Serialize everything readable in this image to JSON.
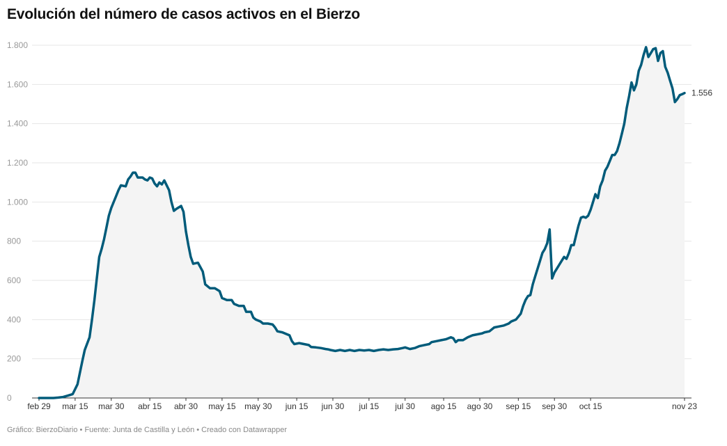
{
  "title": "Evolución del número de casos activos en el Bierzo",
  "footer": "Gráfico: BierzoDiario • Fuente: Junta de Castilla y León • Creado con Datawrapper",
  "colors": {
    "line": "#005b7a",
    "area": "#f4f4f4",
    "grid": "#e6e6e6",
    "axis": "#333333",
    "tick_text": "#999999"
  },
  "chart_data": {
    "type": "area",
    "title": "Evolución del número de casos activos en el Bierzo",
    "xlabel": "",
    "ylabel": "",
    "x_start": "2020-02-29",
    "ylim": [
      0,
      1800
    ],
    "yticks": [
      0,
      200,
      400,
      600,
      800,
      1000,
      1200,
      1400,
      1600,
      1800
    ],
    "ytick_labels": [
      "0",
      "200",
      "400",
      "600",
      "800",
      "1.000",
      "1.200",
      "1.400",
      "1.600",
      "1.800"
    ],
    "xticks": [
      {
        "date": "2020-02-29",
        "label": "feb 29"
      },
      {
        "date": "2020-03-15",
        "label": "mar 15"
      },
      {
        "date": "2020-03-30",
        "label": "mar 30"
      },
      {
        "date": "2020-04-15",
        "label": "abr 15"
      },
      {
        "date": "2020-04-30",
        "label": "abr 30"
      },
      {
        "date": "2020-05-15",
        "label": "may 15"
      },
      {
        "date": "2020-05-30",
        "label": "may 30"
      },
      {
        "date": "2020-06-15",
        "label": "jun 15"
      },
      {
        "date": "2020-06-30",
        "label": "jun 30"
      },
      {
        "date": "2020-07-15",
        "label": "jul 15"
      },
      {
        "date": "2020-07-30",
        "label": "jul 30"
      },
      {
        "date": "2020-08-15",
        "label": "ago 15"
      },
      {
        "date": "2020-08-30",
        "label": "ago 30"
      },
      {
        "date": "2020-09-15",
        "label": "sep 15"
      },
      {
        "date": "2020-09-30",
        "label": "sep 30"
      },
      {
        "date": "2020-10-15",
        "label": "oct 15"
      },
      {
        "date": "2020-11-23",
        "label": "nov 23"
      }
    ],
    "end_label": "1.556",
    "grid": true,
    "series": [
      {
        "points": [
          [
            "2020-02-29",
            0
          ],
          [
            "2020-03-06",
            0
          ],
          [
            "2020-03-08",
            2
          ],
          [
            "2020-03-10",
            5
          ],
          [
            "2020-03-12",
            12
          ],
          [
            "2020-03-14",
            20
          ],
          [
            "2020-03-16",
            70
          ],
          [
            "2020-03-17",
            130
          ],
          [
            "2020-03-18",
            190
          ],
          [
            "2020-03-19",
            245
          ],
          [
            "2020-03-21",
            310
          ],
          [
            "2020-03-22",
            400
          ],
          [
            "2020-03-23",
            500
          ],
          [
            "2020-03-24",
            610
          ],
          [
            "2020-03-25",
            720
          ],
          [
            "2020-03-26",
            760
          ],
          [
            "2020-03-27",
            810
          ],
          [
            "2020-03-28",
            870
          ],
          [
            "2020-03-29",
            930
          ],
          [
            "2020-03-30",
            970
          ],
          [
            "2020-04-01",
            1030
          ],
          [
            "2020-04-02",
            1060
          ],
          [
            "2020-04-03",
            1085
          ],
          [
            "2020-04-05",
            1080
          ],
          [
            "2020-04-06",
            1115
          ],
          [
            "2020-04-07",
            1130
          ],
          [
            "2020-04-08",
            1150
          ],
          [
            "2020-04-09",
            1150
          ],
          [
            "2020-04-10",
            1125
          ],
          [
            "2020-04-12",
            1125
          ],
          [
            "2020-04-13",
            1115
          ],
          [
            "2020-04-14",
            1110
          ],
          [
            "2020-04-15",
            1125
          ],
          [
            "2020-04-16",
            1120
          ],
          [
            "2020-04-17",
            1095
          ],
          [
            "2020-04-18",
            1080
          ],
          [
            "2020-04-19",
            1100
          ],
          [
            "2020-04-20",
            1090
          ],
          [
            "2020-04-21",
            1110
          ],
          [
            "2020-04-23",
            1060
          ],
          [
            "2020-04-24",
            1000
          ],
          [
            "2020-04-25",
            955
          ],
          [
            "2020-04-26",
            965
          ],
          [
            "2020-04-28",
            980
          ],
          [
            "2020-04-29",
            950
          ],
          [
            "2020-04-30",
            850
          ],
          [
            "2020-05-01",
            780
          ],
          [
            "2020-05-02",
            720
          ],
          [
            "2020-05-03",
            685
          ],
          [
            "2020-05-05",
            690
          ],
          [
            "2020-05-07",
            645
          ],
          [
            "2020-05-08",
            580
          ],
          [
            "2020-05-10",
            560
          ],
          [
            "2020-05-12",
            560
          ],
          [
            "2020-05-14",
            545
          ],
          [
            "2020-05-15",
            510
          ],
          [
            "2020-05-17",
            500
          ],
          [
            "2020-05-19",
            500
          ],
          [
            "2020-05-20",
            480
          ],
          [
            "2020-05-22",
            470
          ],
          [
            "2020-05-24",
            470
          ],
          [
            "2020-05-25",
            440
          ],
          [
            "2020-05-27",
            440
          ],
          [
            "2020-05-28",
            410
          ],
          [
            "2020-05-29",
            400
          ],
          [
            "2020-05-31",
            390
          ],
          [
            "2020-06-01",
            380
          ],
          [
            "2020-06-03",
            380
          ],
          [
            "2020-06-05",
            375
          ],
          [
            "2020-06-06",
            360
          ],
          [
            "2020-06-07",
            340
          ],
          [
            "2020-06-09",
            335
          ],
          [
            "2020-06-11",
            325
          ],
          [
            "2020-06-12",
            320
          ],
          [
            "2020-06-13",
            290
          ],
          [
            "2020-06-14",
            275
          ],
          [
            "2020-06-16",
            280
          ],
          [
            "2020-06-18",
            275
          ],
          [
            "2020-06-20",
            270
          ],
          [
            "2020-06-21",
            260
          ],
          [
            "2020-06-23",
            258
          ],
          [
            "2020-06-25",
            255
          ],
          [
            "2020-06-27",
            250
          ],
          [
            "2020-06-28",
            248
          ],
          [
            "2020-06-29",
            245
          ],
          [
            "2020-07-01",
            240
          ],
          [
            "2020-07-03",
            245
          ],
          [
            "2020-07-05",
            240
          ],
          [
            "2020-07-07",
            245
          ],
          [
            "2020-07-09",
            240
          ],
          [
            "2020-07-11",
            245
          ],
          [
            "2020-07-13",
            242
          ],
          [
            "2020-07-15",
            245
          ],
          [
            "2020-07-17",
            240
          ],
          [
            "2020-07-19",
            245
          ],
          [
            "2020-07-21",
            248
          ],
          [
            "2020-07-23",
            245
          ],
          [
            "2020-07-25",
            248
          ],
          [
            "2020-07-27",
            250
          ],
          [
            "2020-07-29",
            255
          ],
          [
            "2020-07-30",
            258
          ],
          [
            "2020-08-01",
            250
          ],
          [
            "2020-08-03",
            255
          ],
          [
            "2020-08-05",
            265
          ],
          [
            "2020-08-07",
            270
          ],
          [
            "2020-08-09",
            275
          ],
          [
            "2020-08-10",
            285
          ],
          [
            "2020-08-12",
            290
          ],
          [
            "2020-08-14",
            295
          ],
          [
            "2020-08-16",
            300
          ],
          [
            "2020-08-18",
            310
          ],
          [
            "2020-08-19",
            305
          ],
          [
            "2020-08-20",
            285
          ],
          [
            "2020-08-21",
            295
          ],
          [
            "2020-08-23",
            295
          ],
          [
            "2020-08-25",
            310
          ],
          [
            "2020-08-27",
            320
          ],
          [
            "2020-08-29",
            325
          ],
          [
            "2020-08-31",
            330
          ],
          [
            "2020-09-01",
            335
          ],
          [
            "2020-09-03",
            340
          ],
          [
            "2020-09-05",
            360
          ],
          [
            "2020-09-07",
            365
          ],
          [
            "2020-09-09",
            370
          ],
          [
            "2020-09-11",
            380
          ],
          [
            "2020-09-12",
            390
          ],
          [
            "2020-09-14",
            400
          ],
          [
            "2020-09-16",
            430
          ],
          [
            "2020-09-17",
            470
          ],
          [
            "2020-09-18",
            500
          ],
          [
            "2020-09-19",
            520
          ],
          [
            "2020-09-20",
            525
          ],
          [
            "2020-09-21",
            580
          ],
          [
            "2020-09-22",
            620
          ],
          [
            "2020-09-23",
            660
          ],
          [
            "2020-09-24",
            700
          ],
          [
            "2020-09-25",
            740
          ],
          [
            "2020-09-26",
            760
          ],
          [
            "2020-09-27",
            790
          ],
          [
            "2020-09-28",
            860
          ],
          [
            "2020-09-29",
            610
          ],
          [
            "2020-09-30",
            640
          ],
          [
            "2020-10-01",
            660
          ],
          [
            "2020-10-02",
            680
          ],
          [
            "2020-10-03",
            700
          ],
          [
            "2020-10-04",
            720
          ],
          [
            "2020-10-05",
            710
          ],
          [
            "2020-10-06",
            740
          ],
          [
            "2020-10-07",
            780
          ],
          [
            "2020-10-08",
            780
          ],
          [
            "2020-10-09",
            830
          ],
          [
            "2020-10-10",
            880
          ],
          [
            "2020-10-11",
            920
          ],
          [
            "2020-10-12",
            925
          ],
          [
            "2020-10-13",
            920
          ],
          [
            "2020-10-14",
            930
          ],
          [
            "2020-10-15",
            960
          ],
          [
            "2020-10-16",
            1000
          ],
          [
            "2020-10-17",
            1040
          ],
          [
            "2020-10-18",
            1020
          ],
          [
            "2020-10-19",
            1080
          ],
          [
            "2020-10-20",
            1110
          ],
          [
            "2020-10-21",
            1160
          ],
          [
            "2020-10-22",
            1180
          ],
          [
            "2020-10-23",
            1210
          ],
          [
            "2020-10-24",
            1240
          ],
          [
            "2020-10-25",
            1240
          ],
          [
            "2020-10-26",
            1260
          ],
          [
            "2020-10-27",
            1300
          ],
          [
            "2020-10-28",
            1350
          ],
          [
            "2020-10-29",
            1400
          ],
          [
            "2020-10-30",
            1480
          ],
          [
            "2020-10-31",
            1540
          ],
          [
            "2020-11-01",
            1610
          ],
          [
            "2020-11-02",
            1570
          ],
          [
            "2020-11-03",
            1600
          ],
          [
            "2020-11-04",
            1670
          ],
          [
            "2020-11-05",
            1700
          ],
          [
            "2020-11-06",
            1750
          ],
          [
            "2020-11-07",
            1790
          ],
          [
            "2020-11-08",
            1740
          ],
          [
            "2020-11-09",
            1760
          ],
          [
            "2020-11-10",
            1780
          ],
          [
            "2020-11-11",
            1785
          ],
          [
            "2020-11-12",
            1720
          ],
          [
            "2020-11-13",
            1760
          ],
          [
            "2020-11-14",
            1770
          ],
          [
            "2020-11-15",
            1690
          ],
          [
            "2020-11-16",
            1660
          ],
          [
            "2020-11-17",
            1620
          ],
          [
            "2020-11-18",
            1580
          ],
          [
            "2020-11-19",
            1510
          ],
          [
            "2020-11-20",
            1525
          ],
          [
            "2020-11-21",
            1545
          ],
          [
            "2020-11-22",
            1550
          ],
          [
            "2020-11-23",
            1556
          ]
        ]
      }
    ]
  }
}
